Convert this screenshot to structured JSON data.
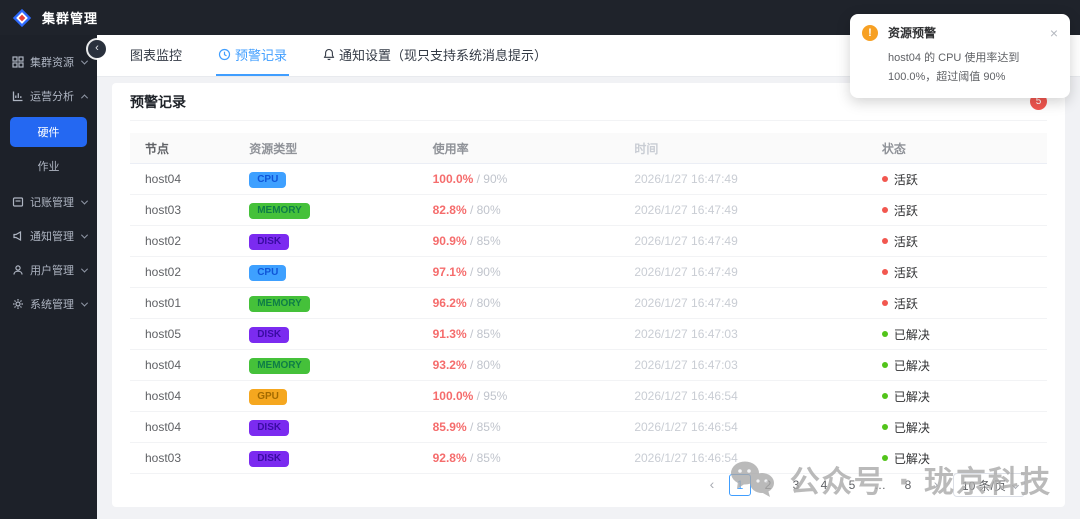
{
  "app": {
    "title": "集群管理"
  },
  "sidebar": {
    "items": [
      {
        "label": "集群资源",
        "icon": "grid-icon",
        "state": "collapsed"
      },
      {
        "label": "运营分析",
        "icon": "chart-icon",
        "state": "expanded",
        "children": [
          {
            "label": "硬件",
            "active": true
          },
          {
            "label": "作业",
            "active": false
          }
        ]
      },
      {
        "label": "记账管理",
        "icon": "ledger-icon",
        "state": "collapsed"
      },
      {
        "label": "通知管理",
        "icon": "megaphone-icon",
        "state": "collapsed"
      },
      {
        "label": "用户管理",
        "icon": "user-icon",
        "state": "collapsed"
      },
      {
        "label": "系统管理",
        "icon": "gear-icon",
        "state": "collapsed"
      }
    ]
  },
  "tabs": [
    {
      "label": "图表监控",
      "active": false
    },
    {
      "label": "预警记录",
      "active": true,
      "icon": "clock-icon"
    },
    {
      "label": "通知设置（现只支持系统消息提示）",
      "active": false,
      "icon": "bell-icon"
    }
  ],
  "card": {
    "title": "预警记录",
    "badge_count": "5"
  },
  "table": {
    "columns": [
      "节点",
      "资源类型",
      "使用率",
      "时间",
      "状态"
    ],
    "type_styles": {
      "CPU": {
        "bg": "#3ea0ff",
        "fg": "#0f55d8"
      },
      "MEMORY": {
        "bg": "#45c13a",
        "fg": "#0e7d46"
      },
      "GPU": {
        "bg": "#f5a71f",
        "fg": "#a36a00"
      },
      "DISK": {
        "bg": "#7b2bf0",
        "fg": "#3a0ca3"
      }
    },
    "status_styles": {
      "active": {
        "label": "活跃",
        "dot": "#f2574f"
      },
      "resolved": {
        "label": "已解决",
        "dot": "#52c41a"
      }
    },
    "rows": [
      {
        "node": "host04",
        "type": "CPU",
        "usage": "100.0%",
        "threshold": "90%",
        "time": "2026/1/27 16:47:49",
        "status": "active"
      },
      {
        "node": "host03",
        "type": "MEMORY",
        "usage": "82.8%",
        "threshold": "80%",
        "time": "2026/1/27 16:47:49",
        "status": "active"
      },
      {
        "node": "host02",
        "type": "DISK",
        "usage": "90.9%",
        "threshold": "85%",
        "time": "2026/1/27 16:47:49",
        "status": "active"
      },
      {
        "node": "host02",
        "type": "CPU",
        "usage": "97.1%",
        "threshold": "90%",
        "time": "2026/1/27 16:47:49",
        "status": "active"
      },
      {
        "node": "host01",
        "type": "MEMORY",
        "usage": "96.2%",
        "threshold": "80%",
        "time": "2026/1/27 16:47:49",
        "status": "active"
      },
      {
        "node": "host05",
        "type": "DISK",
        "usage": "91.3%",
        "threshold": "85%",
        "time": "2026/1/27 16:47:03",
        "status": "resolved"
      },
      {
        "node": "host04",
        "type": "MEMORY",
        "usage": "93.2%",
        "threshold": "80%",
        "time": "2026/1/27 16:47:03",
        "status": "resolved"
      },
      {
        "node": "host04",
        "type": "GPU",
        "usage": "100.0%",
        "threshold": "95%",
        "time": "2026/1/27 16:46:54",
        "status": "resolved"
      },
      {
        "node": "host04",
        "type": "DISK",
        "usage": "85.9%",
        "threshold": "85%",
        "time": "2026/1/27 16:46:54",
        "status": "resolved"
      },
      {
        "node": "host03",
        "type": "DISK",
        "usage": "92.8%",
        "threshold": "85%",
        "time": "2026/1/27 16:46:54",
        "status": "resolved"
      }
    ]
  },
  "pagination": {
    "prev": "‹",
    "next": "›",
    "pages": [
      "1",
      "2",
      "3",
      "4",
      "5",
      "…",
      "8"
    ],
    "active": "1",
    "page_size": "10 条/页"
  },
  "toast": {
    "title": "资源预警",
    "message": "host04 的 CPU 使用率达到 100.0%，超过阈值 90%",
    "close": "×",
    "icon_color": "#f7a023"
  },
  "watermark": {
    "text": "公众号 · 珑京科技"
  },
  "colors": {
    "accent": "#409eff",
    "sidebar_active": "#2468f2",
    "alert_red": "#f56c6c",
    "badge_red": "#f2574f"
  }
}
